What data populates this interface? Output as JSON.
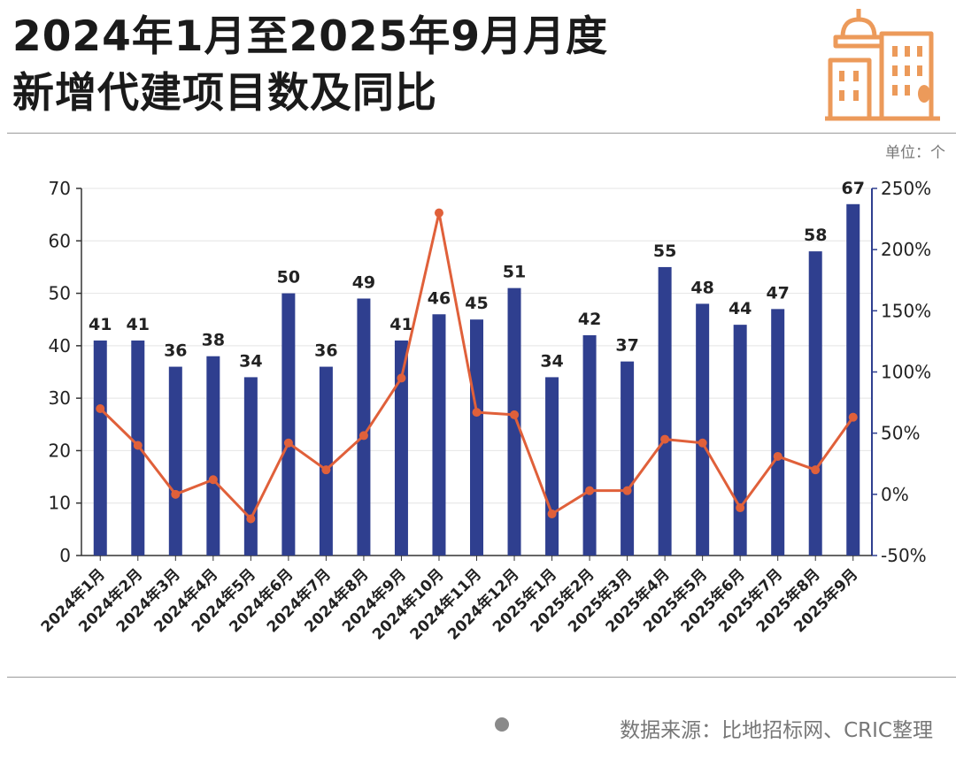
{
  "header": {
    "title_line1": "2024年1月至2025年9月月度",
    "title_line2": "新增代建项目数及同比"
  },
  "unit_label": "单位：个",
  "source": {
    "text": "数据来源：比地招标网、CRIC整理"
  },
  "colors": {
    "bar": "#2f3f8f",
    "line": "#e0603a",
    "logo": "#ec9a5a"
  },
  "chart_data": {
    "type": "bar+line",
    "categories": [
      "2024年1月",
      "2024年2月",
      "2024年3月",
      "2024年4月",
      "2024年5月",
      "2024年6月",
      "2024年7月",
      "2024年8月",
      "2024年9月",
      "2024年10月",
      "2024年11月",
      "2024年12月",
      "2025年1月",
      "2025年2月",
      "2025年3月",
      "2025年4月",
      "2025年5月",
      "2025年6月",
      "2025年7月",
      "2025年8月",
      "2025年9月"
    ],
    "series": [
      {
        "name": "新增代建项目数",
        "type": "bar",
        "axis": "left",
        "values": [
          41,
          41,
          36,
          38,
          34,
          50,
          36,
          49,
          41,
          46,
          45,
          51,
          34,
          42,
          37,
          55,
          48,
          44,
          47,
          58,
          67
        ]
      },
      {
        "name": "同比",
        "type": "line",
        "axis": "right",
        "values": [
          70,
          40,
          0,
          12,
          -20,
          42,
          20,
          48,
          95,
          230,
          67,
          65,
          -16,
          3,
          3,
          45,
          42,
          -11,
          31,
          20,
          63
        ]
      }
    ],
    "left_axis": {
      "ylim": [
        0,
        70
      ],
      "ticks": [
        "0",
        "10",
        "20",
        "30",
        "40",
        "50",
        "60",
        "70"
      ]
    },
    "right_axis": {
      "ylim": [
        -50,
        250
      ],
      "ticks": [
        "-50%",
        "0%",
        "50%",
        "100%",
        "150%",
        "200%",
        "250%"
      ]
    }
  }
}
